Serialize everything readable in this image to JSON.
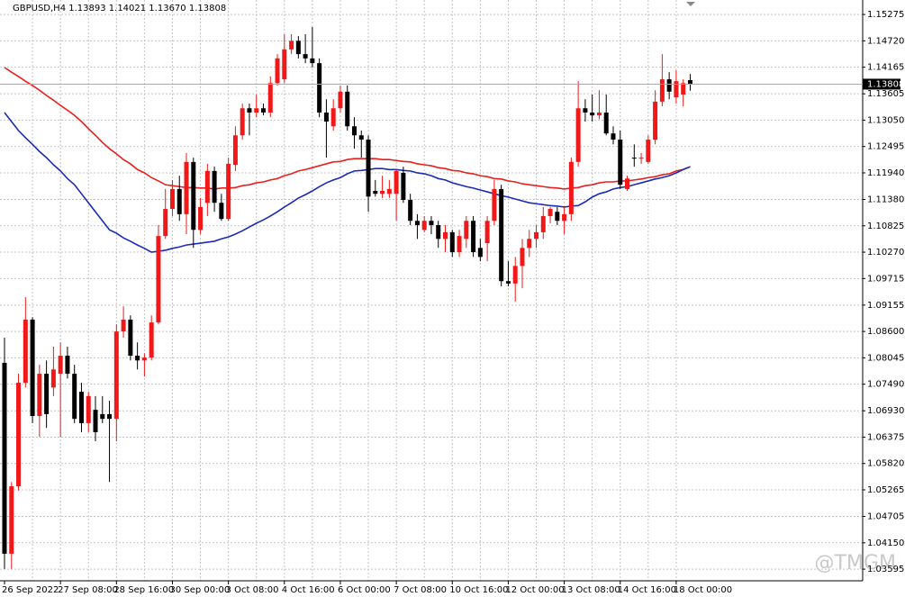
{
  "chart_data": {
    "type": "candlestick",
    "info": "GBPUSD,H4  1.13893 1.14021 1.13670 1.13808",
    "categories": [
      "26 Sep 2022",
      null,
      null,
      null,
      null,
      null,
      null,
      null,
      "27 Sep 08:00",
      null,
      null,
      null,
      null,
      null,
      null,
      null,
      "28 Sep 16:00",
      null,
      null,
      null,
      null,
      null,
      null,
      null,
      "30 Sep 00:00",
      null,
      null,
      null,
      null,
      null,
      null,
      null,
      "3 Oct 08:00",
      null,
      null,
      null,
      null,
      null,
      null,
      null,
      "4 Oct 16:00",
      null,
      null,
      null,
      null,
      null,
      null,
      null,
      "6 Oct 00:00",
      null,
      null,
      null,
      null,
      null,
      null,
      null,
      "7 Oct 08:00",
      null,
      null,
      null,
      null,
      null,
      null,
      null,
      "10 Oct 16:00",
      null,
      null,
      null,
      null,
      null,
      null,
      null,
      "12 Oct 00:00",
      null,
      null,
      null,
      null,
      null,
      null,
      null,
      "13 Oct 08:00",
      null,
      null,
      null,
      null,
      null,
      null,
      null,
      "14 Oct 16:00",
      null,
      null,
      null,
      null,
      null,
      null,
      null,
      "18 Oct 00:00",
      null,
      null
    ],
    "open": [
      1.0794,
      1.0392,
      1.0534,
      1.0752,
      1.0885,
      1.0682,
      1.0771,
      1.0742,
      1.0771,
      1.0809,
      1.0771,
      1.0733,
      1.0667,
      1.0695,
      1.0686,
      1.0686,
      1.0676,
      1.086,
      1.0885,
      1.0809,
      1.0799,
      1.0805,
      1.0879,
      1.1061,
      1.1118,
      1.116,
      1.1107,
      1.1217,
      1.1074,
      1.1131,
      1.1198,
      1.1131,
      1.1097,
      1.1211,
      1.1273,
      1.133,
      1.1321,
      1.133,
      1.1321,
      1.1383,
      1.1391,
      1.1454,
      1.1472,
      1.1444,
      1.1435,
      1.1425,
      1.1321,
      1.1292,
      1.133,
      1.1365,
      1.1292,
      1.1273,
      1.1264,
      1.1156,
      1.115,
      1.115,
      1.115,
      1.1194,
      1.1137,
      1.1093,
      1.1074,
      1.1093,
      1.1084,
      1.1055,
      1.1069,
      1.1027,
      1.1055,
      1.1093,
      1.1036,
      1.1046,
      1.1093,
      1.116,
      1.0966,
      1.0961,
      1.0998,
      1.1036,
      1.1055,
      1.1069,
      1.1103,
      1.1112,
      1.1093,
      1.1107,
      1.1217,
      1.133,
      1.1321,
      1.1315,
      1.1321,
      1.1277,
      1.1264,
      1.116,
      1.1226,
      1.1224,
      1.1217,
      1.1264,
      1.1344,
      1.1391,
      1.1353,
      1.1359,
      1.13893
    ],
    "high": [
      1.0847,
      1.0543,
      1.0771,
      1.0932,
      1.089,
      1.079,
      1.0799,
      1.0828,
      1.0837,
      1.0828,
      1.079,
      1.0752,
      1.0733,
      1.0724,
      1.0724,
      1.0714,
      1.0875,
      1.0913,
      1.0894,
      1.0837,
      1.0814,
      1.0894,
      1.1084,
      1.116,
      1.1179,
      1.1188,
      1.1236,
      1.1226,
      1.1141,
      1.1213,
      1.1207,
      1.115,
      1.1226,
      1.1292,
      1.134,
      1.134,
      1.1359,
      1.134,
      1.1397,
      1.1444,
      1.1486,
      1.1486,
      1.1482,
      1.1486,
      1.1501,
      1.1435,
      1.1349,
      1.1349,
      1.1378,
      1.1378,
      1.1311,
      1.1283,
      1.1273,
      1.1179,
      1.1188,
      1.1179,
      1.1201,
      1.1207,
      1.115,
      1.1107,
      1.1103,
      1.1103,
      1.1093,
      1.1084,
      1.1074,
      1.1074,
      1.1103,
      1.1103,
      1.1055,
      1.1103,
      1.1179,
      1.1169,
      1.1008,
      1.1017,
      1.1055,
      1.1074,
      1.1084,
      1.1122,
      1.1122,
      1.1122,
      1.1122,
      1.1226,
      1.1387,
      1.1349,
      1.1359,
      1.1368,
      1.1359,
      1.1292,
      1.1283,
      1.1188,
      1.1254,
      1.1236,
      1.1273,
      1.1368,
      1.1444,
      1.1406,
      1.141,
      1.1391,
      1.14021
    ],
    "low": [
      1.036,
      1.036,
      1.0525,
      1.0742,
      1.0667,
      1.0638,
      1.0657,
      1.0724,
      1.0638,
      1.0761,
      1.0667,
      1.0648,
      1.0648,
      1.0629,
      1.0667,
      1.0543,
      1.0629,
      1.0847,
      1.0799,
      1.078,
      1.0765,
      1.0799,
      1.0875,
      1.1055,
      1.1103,
      1.1093,
      1.1065,
      1.1036,
      1.1065,
      1.1103,
      1.1112,
      1.1093,
      1.1093,
      1.1198,
      1.1264,
      1.1273,
      1.1311,
      1.1315,
      1.1311,
      1.1378,
      1.1383,
      1.1444,
      1.1435,
      1.1425,
      1.1416,
      1.1311,
      1.1226,
      1.1283,
      1.1321,
      1.1283,
      1.1245,
      1.1226,
      1.1112,
      1.1144,
      1.1141,
      1.1141,
      1.1093,
      1.1131,
      1.1084,
      1.1055,
      1.1069,
      1.1065,
      1.1036,
      1.1027,
      1.1017,
      1.1017,
      1.1036,
      1.1017,
      1.1008,
      1.1008,
      1.1084,
      1.0955,
      1.0955,
      1.0923,
      1.0951,
      1.1017,
      1.1036,
      1.1055,
      1.1088,
      1.1084,
      1.1065,
      1.1093,
      1.1207,
      1.1302,
      1.1302,
      1.1307,
      1.1273,
      1.1254,
      1.116,
      1.1156,
      1.1207,
      1.1213,
      1.1213,
      1.1254,
      1.1334,
      1.1349,
      1.134,
      1.1334,
      1.1367
    ],
    "close": [
      1.0392,
      1.0534,
      1.0752,
      1.0885,
      1.0682,
      1.0771,
      1.0686,
      1.078,
      1.0809,
      1.0771,
      1.0676,
      1.0667,
      1.0724,
      1.0648,
      1.0676,
      1.0676,
      1.086,
      1.0885,
      1.0809,
      1.0799,
      1.0805,
      1.0879,
      1.1061,
      1.1118,
      1.116,
      1.1107,
      1.1217,
      1.1074,
      1.1122,
      1.1198,
      1.1131,
      1.1097,
      1.1213,
      1.1273,
      1.133,
      1.1321,
      1.133,
      1.1321,
      1.1383,
      1.1435,
      1.1454,
      1.1472,
      1.1444,
      1.1435,
      1.1425,
      1.1321,
      1.1302,
      1.133,
      1.1365,
      1.1292,
      1.1273,
      1.1264,
      1.1144,
      1.115,
      1.1156,
      1.116,
      1.1198,
      1.1137,
      1.1093,
      1.1084,
      1.1093,
      1.1084,
      1.1055,
      1.1069,
      1.1027,
      1.1061,
      1.1093,
      1.1027,
      1.1017,
      1.1093,
      1.116,
      1.0966,
      1.0961,
      1.0998,
      1.1036,
      1.1055,
      1.1069,
      1.1103,
      1.1118,
      1.1093,
      1.1107,
      1.1217,
      1.133,
      1.1321,
      1.1315,
      1.1321,
      1.1277,
      1.1264,
      1.1169,
      1.1182,
      1.1224,
      1.1226,
      1.1264,
      1.1344,
      1.1391,
      1.1365,
      1.1387,
      1.1383,
      1.13808
    ],
    "up_color": "#f01818",
    "down_color": "#000000",
    "lines": [
      {
        "color": "#e8201e",
        "values": [
          1.1416,
          1.1406,
          1.1397,
          1.1387,
          1.1378,
          1.1368,
          1.1357,
          1.1347,
          1.1336,
          1.1326,
          1.1315,
          1.1302,
          1.1287,
          1.1273,
          1.1258,
          1.1245,
          1.1234,
          1.1222,
          1.1213,
          1.1201,
          1.1194,
          1.1184,
          1.1177,
          1.1169,
          1.1167,
          1.1165,
          1.1163,
          1.1163,
          1.1162,
          1.1162,
          1.116,
          1.1162,
          1.1162,
          1.1163,
          1.1167,
          1.1169,
          1.1173,
          1.1175,
          1.1179,
          1.1182,
          1.1188,
          1.1192,
          1.1198,
          1.1201,
          1.1205,
          1.1209,
          1.1213,
          1.1217,
          1.1218,
          1.1222,
          1.1224,
          1.1224,
          1.1224,
          1.1224,
          1.1222,
          1.1222,
          1.122,
          1.1218,
          1.1217,
          1.1213,
          1.1211,
          1.1209,
          1.1205,
          1.1203,
          1.1199,
          1.1198,
          1.1194,
          1.1192,
          1.1188,
          1.1186,
          1.1182,
          1.1181,
          1.1177,
          1.1175,
          1.1171,
          1.1169,
          1.1167,
          1.1165,
          1.1163,
          1.1162,
          1.116,
          1.1162,
          1.1163,
          1.1167,
          1.1169,
          1.1173,
          1.1175,
          1.1175,
          1.1177,
          1.1177,
          1.1179,
          1.1181,
          1.1184,
          1.1186,
          1.119,
          1.1192,
          1.1198,
          1.1201,
          1.1207
        ]
      },
      {
        "color": "#1a2bb8",
        "values": [
          1.1321,
          1.1302,
          1.1283,
          1.1268,
          1.1254,
          1.1239,
          1.1226,
          1.1211,
          1.1198,
          1.1182,
          1.1169,
          1.115,
          1.1131,
          1.1112,
          1.1093,
          1.1074,
          1.1067,
          1.1057,
          1.105,
          1.1042,
          1.1035,
          1.1027,
          1.1029,
          1.1031,
          1.1035,
          1.1038,
          1.1042,
          1.1044,
          1.1046,
          1.1048,
          1.105,
          1.1055,
          1.1059,
          1.1065,
          1.1072,
          1.108,
          1.1088,
          1.1095,
          1.1103,
          1.1112,
          1.1122,
          1.1131,
          1.1141,
          1.1148,
          1.1156,
          1.1165,
          1.1173,
          1.1179,
          1.1184,
          1.1192,
          1.1198,
          1.1199,
          1.1201,
          1.1203,
          1.1203,
          1.1201,
          1.1201,
          1.1199,
          1.1198,
          1.1194,
          1.1192,
          1.1188,
          1.1182,
          1.1179,
          1.1173,
          1.1169,
          1.1165,
          1.1162,
          1.1158,
          1.1154,
          1.115,
          1.1146,
          1.1143,
          1.1139,
          1.1135,
          1.1131,
          1.1129,
          1.1127,
          1.1125,
          1.1124,
          1.1122,
          1.1124,
          1.1125,
          1.1133,
          1.1143,
          1.115,
          1.1154,
          1.116,
          1.1163,
          1.1165,
          1.1169,
          1.1173,
          1.1177,
          1.1181,
          1.1184,
          1.1188,
          1.1194,
          1.1201,
          1.1207
        ]
      }
    ],
    "last_price": 1.13808,
    "ylim": [
      1.0335,
      1.1558
    ],
    "yticks": [
      1.15275,
      {
        "value": 1.1472,
        "label": "1.14720"
      },
      1.14165,
      1.13605,
      {
        "value": 1.1305,
        "label": "1.13050"
      },
      1.12495,
      {
        "value": 1.1194,
        "label": "1.11940"
      },
      {
        "value": 1.1138,
        "label": "1.11380"
      },
      1.10825,
      {
        "value": 1.1027,
        "label": "1.10270"
      },
      1.09715,
      1.09155,
      {
        "value": 1.086,
        "label": "1.08600"
      },
      1.08045,
      {
        "value": 1.0749,
        "label": "1.07490"
      },
      {
        "value": 1.0693,
        "label": "1.06930"
      },
      1.06375,
      {
        "value": 1.0582,
        "label": "1.05820"
      },
      1.05265,
      1.04705,
      {
        "value": 1.0415,
        "label": "1.04150"
      },
      1.03595
    ],
    "grid": true,
    "watermark": "@TMGM"
  }
}
